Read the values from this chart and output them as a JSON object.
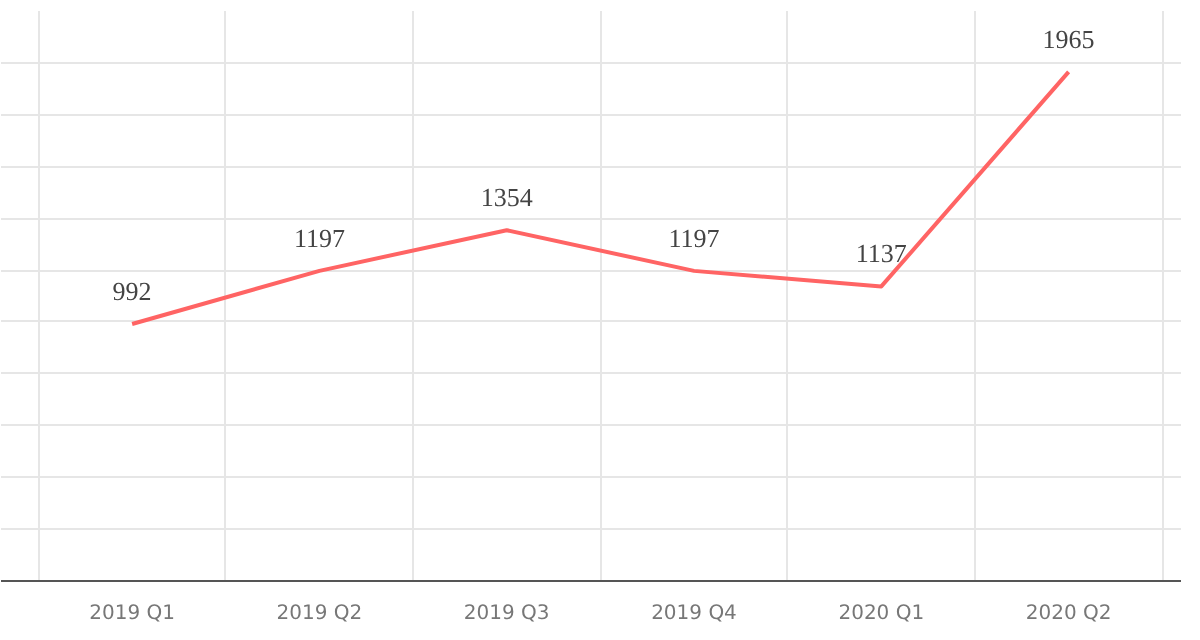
{
  "chart_data": {
    "type": "line",
    "categories": [
      "2019 Q1",
      "2019 Q2",
      "2019 Q3",
      "2019 Q4",
      "2020 Q1",
      "2020 Q2"
    ],
    "series": [
      {
        "color": "#ff6464",
        "values": [
          992,
          1197,
          1354,
          1197,
          1137,
          1965
        ]
      }
    ],
    "ylim": [
      0,
      2200
    ],
    "grid": true,
    "data_labels": true,
    "marker": "none",
    "line_style": "solid",
    "tick_labels": "x"
  }
}
